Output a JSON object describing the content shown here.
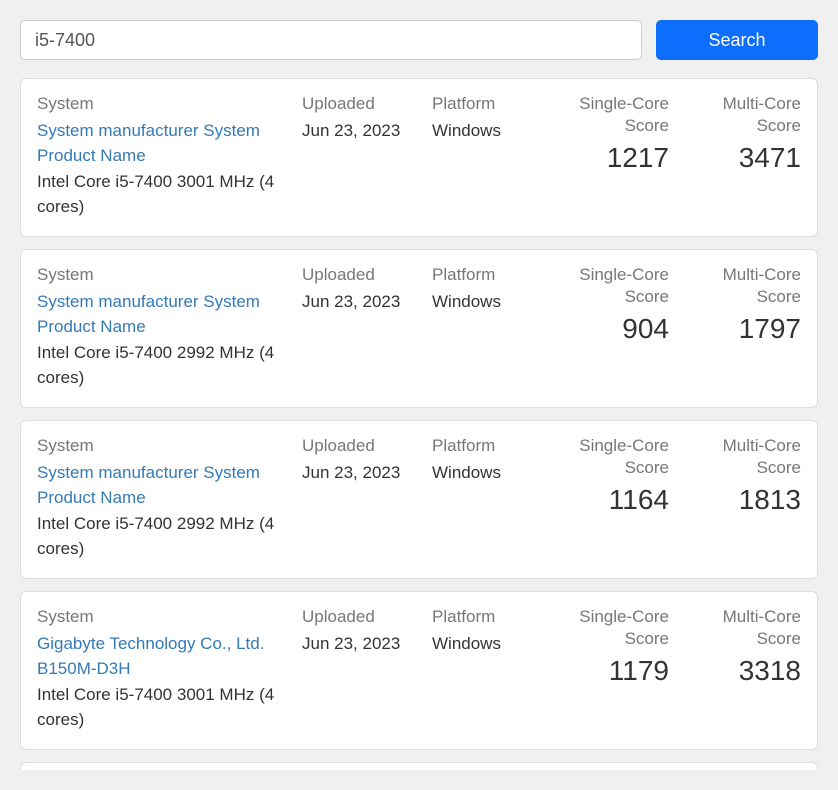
{
  "search": {
    "value": "i5-7400",
    "button_label": "Search"
  },
  "labels": {
    "system": "System",
    "uploaded": "Uploaded",
    "platform": "Platform",
    "single_core": "Single-Core Score",
    "multi_core": "Multi-Core Score"
  },
  "results": [
    {
      "system_name": "System manufacturer System Product Name",
      "cpu": "Intel Core i5-7400 3001 MHz (4 cores)",
      "uploaded": "Jun 23, 2023",
      "platform": "Windows",
      "single_core": "1217",
      "multi_core": "3471"
    },
    {
      "system_name": "System manufacturer System Product Name",
      "cpu": "Intel Core i5-7400 2992 MHz (4 cores)",
      "uploaded": "Jun 23, 2023",
      "platform": "Windows",
      "single_core": "904",
      "multi_core": "1797"
    },
    {
      "system_name": "System manufacturer System Product Name",
      "cpu": "Intel Core i5-7400 2992 MHz (4 cores)",
      "uploaded": "Jun 23, 2023",
      "platform": "Windows",
      "single_core": "1164",
      "multi_core": "1813"
    },
    {
      "system_name": "Gigabyte Technology Co., Ltd. B150M-D3H",
      "cpu": "Intel Core i5-7400 3001 MHz (4 cores)",
      "uploaded": "Jun 23, 2023",
      "platform": "Windows",
      "single_core": "1179",
      "multi_core": "3318"
    }
  ],
  "colors": {
    "background": "#f0f0f0",
    "card_bg": "#ffffff",
    "border": "#dddddd",
    "link": "#337ab7",
    "button": "#0d6efd",
    "label": "#777777",
    "text": "#333333"
  }
}
